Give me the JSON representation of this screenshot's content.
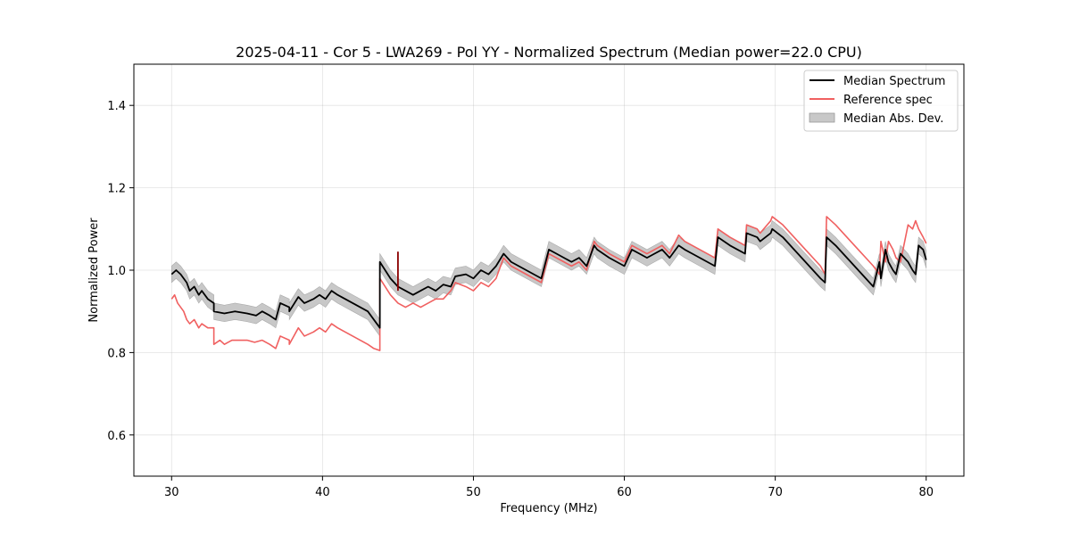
{
  "chart_data": {
    "type": "line",
    "title": "2025-04-11 - Cor 5 - LWA269 - Pol YY - Normalized Spectrum (Median power=22.0 CPU)",
    "xlabel": "Frequency (MHz)",
    "ylabel": "Normalized Power",
    "xlim": [
      27.5,
      82.5
    ],
    "ylim": [
      0.5,
      1.5
    ],
    "xticks": [
      30,
      40,
      50,
      60,
      70,
      80
    ],
    "yticks": [
      0.6,
      0.8,
      1.0,
      1.2,
      1.4
    ],
    "grid": true,
    "legend_position": "top-right",
    "series": [
      {
        "name": "Median Spectrum",
        "color": "#000000",
        "x": [
          30.0,
          30.3,
          30.6,
          31.0,
          31.2,
          31.5,
          31.8,
          32.0,
          32.4,
          32.8,
          32.8,
          33.5,
          34.2,
          35.0,
          35.6,
          36.0,
          36.5,
          36.9,
          37.2,
          37.8,
          37.8,
          38.4,
          38.8,
          39.4,
          39.8,
          40.2,
          40.6,
          41.0,
          41.5,
          42.0,
          42.5,
          43.0,
          43.4,
          43.8,
          43.8,
          44.5,
          45.0,
          45.5,
          46.0,
          46.5,
          47.0,
          47.5,
          48.0,
          48.5,
          48.8,
          49.5,
          50.0,
          50.5,
          51.0,
          51.5,
          52.0,
          52.5,
          53.0,
          53.5,
          54.0,
          54.5,
          55.0,
          55.5,
          56.0,
          56.5,
          57.0,
          57.5,
          58.0,
          58.2,
          59.0,
          59.5,
          60.0,
          60.5,
          61.0,
          61.5,
          62.0,
          62.5,
          63.0,
          63.6,
          64.0,
          64.5,
          65.0,
          65.5,
          66.0,
          66.2,
          67.0,
          67.5,
          68.0,
          68.1,
          68.8,
          69.0,
          69.7,
          69.8,
          70.5,
          71.0,
          71.5,
          72.0,
          72.5,
          73.0,
          73.3,
          73.4,
          74.0,
          74.5,
          75.0,
          75.5,
          76.0,
          76.5,
          76.9,
          77.0,
          77.3,
          77.5,
          77.8,
          78.0,
          78.3,
          78.8,
          79.1,
          79.3,
          79.5,
          79.8,
          80.0
        ],
        "values": [
          0.99,
          1.0,
          0.99,
          0.97,
          0.95,
          0.96,
          0.94,
          0.95,
          0.93,
          0.92,
          0.9,
          0.895,
          0.9,
          0.895,
          0.89,
          0.9,
          0.89,
          0.88,
          0.92,
          0.91,
          0.9,
          0.935,
          0.92,
          0.93,
          0.94,
          0.93,
          0.95,
          0.94,
          0.93,
          0.92,
          0.91,
          0.9,
          0.88,
          0.86,
          1.02,
          0.98,
          0.96,
          0.95,
          0.94,
          0.95,
          0.96,
          0.95,
          0.965,
          0.96,
          0.985,
          0.99,
          0.98,
          1.0,
          0.99,
          1.01,
          1.04,
          1.02,
          1.01,
          1.0,
          0.99,
          0.98,
          1.05,
          1.04,
          1.03,
          1.02,
          1.03,
          1.01,
          1.06,
          1.05,
          1.03,
          1.02,
          1.01,
          1.05,
          1.04,
          1.03,
          1.04,
          1.05,
          1.03,
          1.06,
          1.05,
          1.04,
          1.03,
          1.02,
          1.01,
          1.08,
          1.06,
          1.05,
          1.04,
          1.09,
          1.08,
          1.07,
          1.09,
          1.1,
          1.08,
          1.06,
          1.04,
          1.02,
          1.0,
          0.98,
          0.97,
          1.08,
          1.06,
          1.04,
          1.02,
          1.0,
          0.98,
          0.96,
          1.02,
          0.98,
          1.05,
          1.02,
          1.0,
          0.99,
          1.04,
          1.02,
          1.0,
          0.99,
          1.06,
          1.05,
          1.025
        ]
      },
      {
        "name": "Reference spec",
        "color": "#f06060",
        "x": [
          30.0,
          30.2,
          30.4,
          30.6,
          30.8,
          31.0,
          31.2,
          31.5,
          31.8,
          32.0,
          32.4,
          32.8,
          32.8,
          33.2,
          33.5,
          34.0,
          35.0,
          35.5,
          36.0,
          36.5,
          36.9,
          37.2,
          37.8,
          37.8,
          38.4,
          38.8,
          39.4,
          39.8,
          40.2,
          40.6,
          41.0,
          41.5,
          42.0,
          42.5,
          43.0,
          43.4,
          43.8,
          43.8,
          44.5,
          45.0,
          45.5,
          46.0,
          46.5,
          47.0,
          47.5,
          48.0,
          48.5,
          48.8,
          49.5,
          50.0,
          50.5,
          51.0,
          51.5,
          52.0,
          52.5,
          53.0,
          53.5,
          54.0,
          54.5,
          55.0,
          55.5,
          56.0,
          56.5,
          57.0,
          57.5,
          58.0,
          58.2,
          59.0,
          59.5,
          60.0,
          60.5,
          61.0,
          61.5,
          62.0,
          62.5,
          63.0,
          63.6,
          64.0,
          64.5,
          65.0,
          65.5,
          66.0,
          66.2,
          67.0,
          67.5,
          68.0,
          68.1,
          68.8,
          69.0,
          69.7,
          69.8,
          70.5,
          71.0,
          71.5,
          72.0,
          72.5,
          73.0,
          73.3,
          73.4,
          74.0,
          74.5,
          75.0,
          75.5,
          76.0,
          76.5,
          76.9,
          77.0,
          77.3,
          77.5,
          77.8,
          78.0,
          78.3,
          78.8,
          79.1,
          79.3,
          79.5,
          79.8,
          80.0
        ],
        "values": [
          0.93,
          0.94,
          0.92,
          0.91,
          0.9,
          0.88,
          0.87,
          0.88,
          0.86,
          0.87,
          0.86,
          0.86,
          0.82,
          0.83,
          0.82,
          0.83,
          0.83,
          0.825,
          0.83,
          0.82,
          0.81,
          0.84,
          0.83,
          0.82,
          0.86,
          0.84,
          0.85,
          0.86,
          0.85,
          0.87,
          0.86,
          0.85,
          0.84,
          0.83,
          0.82,
          0.81,
          0.805,
          0.98,
          0.94,
          0.92,
          0.91,
          0.92,
          0.91,
          0.92,
          0.93,
          0.93,
          0.95,
          0.97,
          0.96,
          0.95,
          0.97,
          0.96,
          0.98,
          1.03,
          1.01,
          1.0,
          0.99,
          0.98,
          0.97,
          1.04,
          1.03,
          1.02,
          1.01,
          1.02,
          1.0,
          1.07,
          1.06,
          1.04,
          1.03,
          1.02,
          1.06,
          1.05,
          1.04,
          1.05,
          1.06,
          1.04,
          1.085,
          1.07,
          1.06,
          1.05,
          1.04,
          1.03,
          1.1,
          1.08,
          1.07,
          1.06,
          1.11,
          1.1,
          1.09,
          1.12,
          1.13,
          1.11,
          1.09,
          1.07,
          1.05,
          1.03,
          1.01,
          0.99,
          1.13,
          1.11,
          1.09,
          1.07,
          1.05,
          1.03,
          1.01,
          0.99,
          1.07,
          1.02,
          1.07,
          1.05,
          1.03,
          1.02,
          1.11,
          1.1,
          1.12,
          1.1,
          1.08,
          1.065
        ]
      }
    ],
    "band": {
      "name": "Median Abs. Dev.",
      "color": "#c8c8c8",
      "half_width": 0.02
    },
    "spike": {
      "x": 45.0,
      "y_low": 0.95,
      "y_high": 1.045,
      "color": "#8b0000"
    }
  }
}
